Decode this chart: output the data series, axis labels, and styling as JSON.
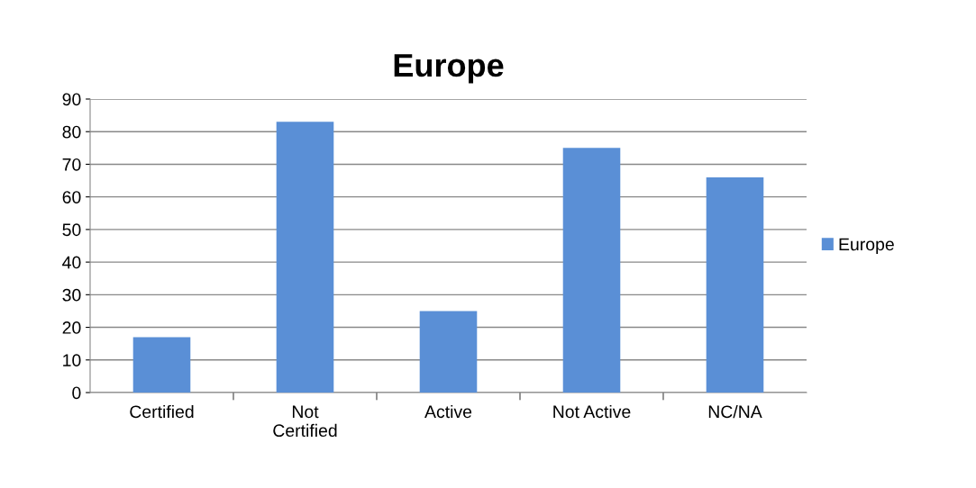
{
  "chart_data": {
    "type": "bar",
    "title": "Europe",
    "categories": [
      "Certified",
      "Not Certified",
      "Active",
      "Not Active",
      "NC/NA"
    ],
    "series": [
      {
        "name": "Europe",
        "color": "#5a8fd6",
        "values": [
          17,
          83,
          25,
          75,
          66
        ]
      }
    ],
    "ylim": [
      0,
      90
    ],
    "yticks": [
      0,
      10,
      20,
      30,
      40,
      50,
      60,
      70,
      80,
      90
    ],
    "grid": "y",
    "legend": "right"
  }
}
